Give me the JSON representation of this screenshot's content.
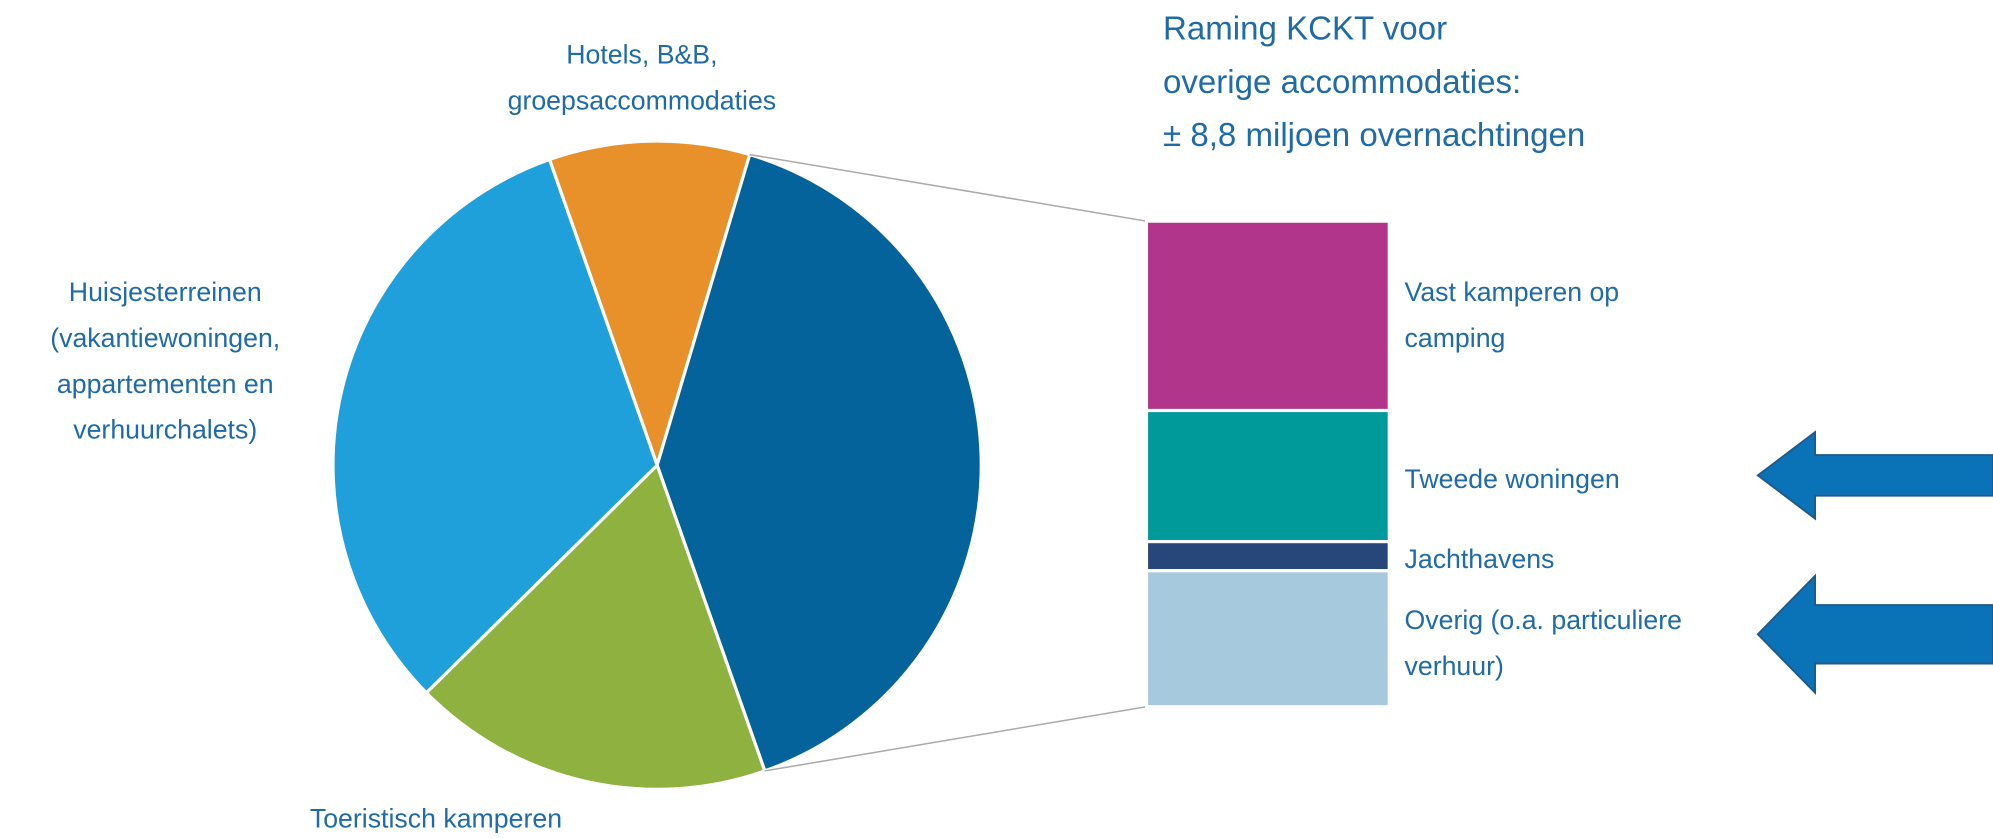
{
  "chart_data": [
    {
      "type": "pie",
      "categories": [
        "Hotels, B&B, groepsaccommodaties",
        null,
        "Toeristisch kamperen",
        "Huisjesterreinen (vakantiewoningen, appartementen en verhuurchalets)"
      ],
      "values": [
        10,
        40,
        18,
        32
      ],
      "colors": [
        "#e8912a",
        "#04639b",
        "#8fb13f",
        "#1fa0da"
      ]
    },
    {
      "type": "stacked-bar",
      "title": [
        "Raming KCKT voor",
        "overige accommodaties:",
        "± 8,8 miljoen overnachtingen"
      ],
      "categories": [
        "Vast kamperen op camping",
        "Tweede woningen",
        "Jachthavens",
        "Overig (o.a. particuliere verhuur)"
      ],
      "values": [
        39,
        27,
        6,
        28
      ],
      "colors": [
        "#b0358b",
        "#019a9a",
        "#27477b",
        "#a7c9dd"
      ]
    }
  ]
}
